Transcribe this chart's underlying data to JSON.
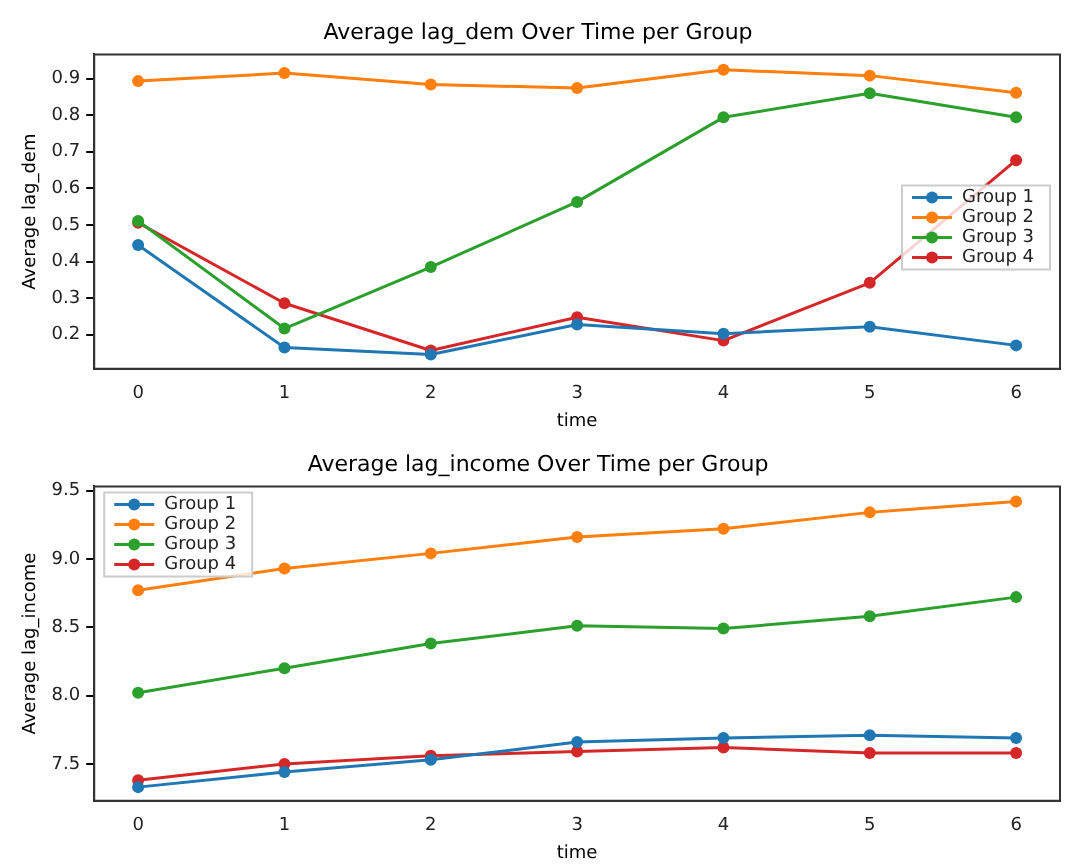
{
  "chart_data": [
    {
      "type": "line",
      "title": "Average lag_dem Over Time per Group",
      "xlabel": "time",
      "ylabel": "Average lag_dem",
      "x": [
        0,
        1,
        2,
        3,
        4,
        5,
        6
      ],
      "xlim": [
        -0.3,
        6.3
      ],
      "xticks": [
        0,
        1,
        2,
        3,
        4,
        5,
        6
      ],
      "ylim": [
        0.107,
        0.966
      ],
      "yticks": [
        0.2,
        0.3,
        0.4,
        0.5,
        0.6,
        0.7,
        0.8,
        0.9
      ],
      "grid": false,
      "legend": "right",
      "marker": "circle",
      "line_style": "solid",
      "series": [
        {
          "name": "Group 1",
          "color": "#1f77b4",
          "values": [
            0.445,
            0.165,
            0.146,
            0.228,
            0.203,
            0.222,
            0.171
          ]
        },
        {
          "name": "Group 2",
          "color": "#ff7f0e",
          "values": [
            0.893,
            0.915,
            0.884,
            0.874,
            0.924,
            0.908,
            0.861
          ]
        },
        {
          "name": "Group 3",
          "color": "#2ca02c",
          "values": [
            0.511,
            0.217,
            0.385,
            0.563,
            0.794,
            0.86,
            0.794
          ]
        },
        {
          "name": "Group 4",
          "color": "#d62728",
          "values": [
            0.506,
            0.286,
            0.157,
            0.248,
            0.184,
            0.342,
            0.677
          ]
        }
      ]
    },
    {
      "type": "line",
      "title": "Average lag_income Over Time per Group",
      "xlabel": "time",
      "ylabel": "Average lag_income",
      "x": [
        0,
        1,
        2,
        3,
        4,
        5,
        6
      ],
      "xlim": [
        -0.3,
        6.3
      ],
      "xticks": [
        0,
        1,
        2,
        3,
        4,
        5,
        6
      ],
      "ylim": [
        7.23,
        9.53
      ],
      "yticks": [
        {
          "value": 7.5,
          "label": "7.5"
        },
        {
          "value": 8,
          "label": "8.0"
        },
        {
          "value": 8.5,
          "label": "8.5"
        },
        {
          "value": 9,
          "label": "9.0"
        },
        {
          "value": 9.5,
          "label": "9.5"
        }
      ],
      "grid": false,
      "legend": "top left",
      "marker": "circle",
      "line_style": "solid",
      "series": [
        {
          "name": "Group 1",
          "color": "#1f77b4",
          "values": [
            7.33,
            7.44,
            7.53,
            7.66,
            7.69,
            7.71,
            7.69
          ]
        },
        {
          "name": "Group 2",
          "color": "#ff7f0e",
          "values": [
            8.77,
            8.93,
            9.04,
            9.16,
            9.22,
            9.34,
            9.42
          ]
        },
        {
          "name": "Group 3",
          "color": "#2ca02c",
          "values": [
            8.02,
            8.2,
            8.38,
            8.51,
            8.49,
            8.58,
            8.72
          ]
        },
        {
          "name": "Group 4",
          "color": "#d62728",
          "values": [
            7.38,
            7.5,
            7.56,
            7.59,
            7.62,
            7.58,
            7.58
          ]
        }
      ]
    }
  ]
}
